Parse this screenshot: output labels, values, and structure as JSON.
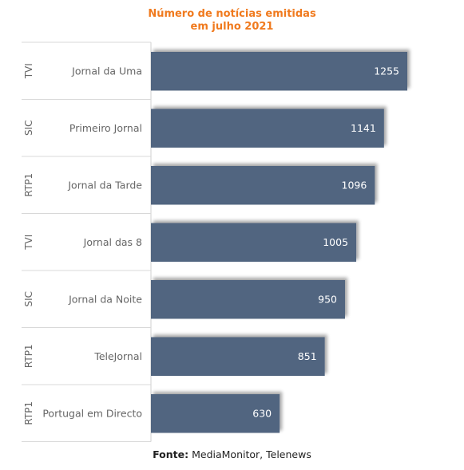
{
  "chart_data": {
    "type": "bar",
    "orientation": "horizontal",
    "title_line1": "Número de notícias emitidas",
    "title_line2": "em julho 2021",
    "categories": [
      "Jornal da Uma",
      "Primeiro Jornal",
      "Jornal da Tarde",
      "Jornal das 8",
      "Jornal da Noite",
      "TeleJornal",
      "Portugal em Directo"
    ],
    "groups": [
      "TVI",
      "SIC",
      "RTP1",
      "TVI",
      "SIC",
      "RTP1",
      "RTP1"
    ],
    "values": [
      1255,
      1141,
      1096,
      1005,
      950,
      851,
      630
    ],
    "xlim": [
      0,
      1255
    ],
    "grid": false,
    "legend": "none",
    "bar_color": "#516580",
    "title_color": "#f07a1e"
  },
  "source": {
    "label": "Fonte:",
    "text": "MediaMonitor, Telenews"
  }
}
